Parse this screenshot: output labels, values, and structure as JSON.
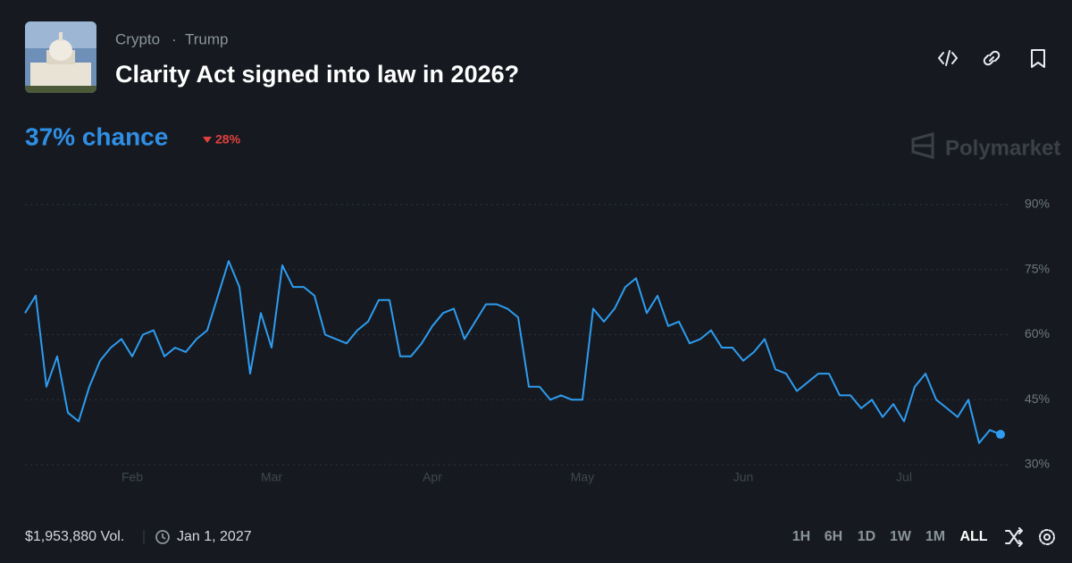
{
  "header": {
    "tags": [
      "Crypto",
      "Trump"
    ],
    "title": "Clarity Act signed into law in 2026?"
  },
  "chance": "37% chance",
  "change": "28%",
  "brand": "Polymarket",
  "footer": {
    "volume": "$1,953,880 Vol.",
    "end_date": "Jan 1, 2027",
    "timeframes": [
      "1H",
      "6H",
      "1D",
      "1W",
      "1M",
      "ALL"
    ]
  },
  "chart_data": {
    "type": "line",
    "color": "#2e9cf0",
    "categories": [
      null,
      null,
      null,
      null,
      null,
      null,
      null,
      null,
      null,
      null,
      "Feb",
      null,
      null,
      null,
      null,
      null,
      null,
      null,
      null,
      null,
      null,
      null,
      null,
      "Mar",
      null,
      null,
      null,
      null,
      null,
      null,
      null,
      null,
      null,
      null,
      null,
      null,
      null,
      null,
      "Apr",
      null,
      null,
      null,
      null,
      null,
      null,
      null,
      null,
      null,
      null,
      null,
      null,
      null,
      "May",
      null,
      null,
      null,
      null,
      null,
      null,
      null,
      null,
      null,
      null,
      null,
      null,
      null,
      null,
      "Jun",
      null,
      null,
      null,
      null,
      null,
      null,
      null,
      null,
      null,
      null,
      null,
      null,
      null,
      null,
      "Jul",
      null,
      null,
      null,
      null,
      null,
      null,
      null,
      null,
      null
    ],
    "values": [
      65,
      69,
      48,
      55,
      42,
      40,
      48,
      54,
      57,
      59,
      55,
      60,
      61,
      55,
      57,
      56,
      59,
      61,
      69,
      77,
      71,
      51,
      65,
      57,
      76,
      71,
      71,
      69,
      60,
      59,
      58,
      61,
      63,
      68,
      68,
      55,
      55,
      58,
      62,
      65,
      66,
      59,
      63,
      67,
      67,
      66,
      64,
      48,
      48,
      45,
      46,
      45,
      45,
      66,
      63,
      66,
      71,
      73,
      65,
      69,
      62,
      63,
      58,
      59,
      61,
      57,
      57,
      54,
      56,
      59,
      52,
      51,
      47,
      49,
      51,
      51,
      46,
      46,
      43,
      45,
      41,
      44,
      40,
      48,
      51,
      45,
      43,
      41,
      45,
      35,
      38,
      37
    ],
    "ylim": [
      30,
      90
    ],
    "yticks": [
      {
        "value": 30,
        "label": "30%"
      },
      {
        "value": 45,
        "label": "45%"
      },
      {
        "value": 60,
        "label": "60%"
      },
      {
        "value": 75,
        "label": "75%"
      },
      {
        "value": 90,
        "label": "90%"
      }
    ],
    "grid": true
  }
}
